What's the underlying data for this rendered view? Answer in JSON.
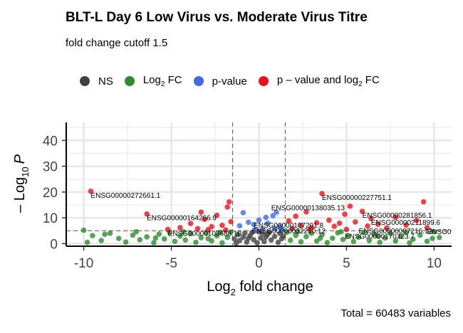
{
  "chart_data": {
    "type": "scatter",
    "title": "BLT-L Day 6 Low Virus vs. Moderate Virus Titre",
    "subtitle": "fold change cutoff 1.5",
    "caption": "Total = 60483 variables",
    "xlabel_main": "Log",
    "xlabel_sub": "2",
    "xlabel_rest": " fold change",
    "ylabel_main": "– Log",
    "ylabel_sub": "10",
    "ylabel_italic": "P",
    "xlim": [
      -11,
      11
    ],
    "ylim": [
      -1,
      47
    ],
    "xticks": [
      -10,
      -5,
      0,
      5,
      10
    ],
    "xtick_labels": [
      "-10",
      "-5",
      "0",
      "5",
      "10"
    ],
    "yticks": [
      0,
      10,
      20,
      30,
      40
    ],
    "ytick_labels": [
      "0",
      "10",
      "20",
      "30",
      "40"
    ],
    "fc_cutoff_lines": [
      -1.5,
      1.5
    ],
    "p_cutoff_line": 5,
    "grid": true,
    "legend_position": "top",
    "legend": [
      {
        "name": "NS",
        "color": "#404040"
      },
      {
        "name_main": "Log",
        "name_sub": "2",
        "name_rest": " FC",
        "color": "#2e8b2e"
      },
      {
        "name": "p-value",
        "color": "#4169e1"
      },
      {
        "name_main": "p – value and log",
        "name_sub": "2",
        "name_rest": " FC",
        "color": "#e8121d"
      }
    ],
    "colors": {
      "ns": "#404040",
      "fc": "#2e8b2e",
      "p": "#4169e1",
      "both": "#e8121d"
    },
    "labeled_points": [
      {
        "gene": "ENSG00000272661.1",
        "x": -9.6,
        "y": 20.3
      },
      {
        "gene": "ENSG00000164266.9",
        "x": -6.4,
        "y": 11.5
      },
      {
        "gene": "ENSG00000108688.10",
        "x": -5.2,
        "y": 5.5
      },
      {
        "gene": "ENSG00000138035.13",
        "x": 0.7,
        "y": 15.4
      },
      {
        "gene": "ENSG00000107201.8",
        "x": -0.3,
        "y": 8.7
      },
      {
        "gene": "ENSG00000032210.12",
        "x": -0.4,
        "y": 6.5
      },
      {
        "gene": "ENSG00000227751.1",
        "x": 3.6,
        "y": 19.4
      },
      {
        "gene": "ENSG00000281856.1",
        "x": 5.9,
        "y": 12.5
      },
      {
        "gene": "ENSG00000211899.6",
        "x": 6.4,
        "y": 9.7
      },
      {
        "gene": "ENSG00000007216.13",
        "x": 5.7,
        "y": 6.4
      },
      {
        "gene": "ENSG00000170323.7",
        "x": 4.9,
        "y": 4.4
      },
      {
        "gene": "ENSG0",
        "x": 9.6,
        "y": 6.2
      }
    ],
    "points": {
      "ns": [
        [
          -1.3,
          0.2
        ],
        [
          -1.1,
          1.2
        ],
        [
          -0.9,
          2.5
        ],
        [
          -0.7,
          0.6
        ],
        [
          -0.5,
          3.1
        ],
        [
          -0.3,
          1.5
        ],
        [
          -0.1,
          0.3
        ],
        [
          0.1,
          2.2
        ],
        [
          0.3,
          0.8
        ],
        [
          0.5,
          3.6
        ],
        [
          0.7,
          1.4
        ],
        [
          0.9,
          2.8
        ],
        [
          1.1,
          0.5
        ],
        [
          1.3,
          1.9
        ],
        [
          -1.2,
          3.5
        ],
        [
          -0.8,
          4.1
        ],
        [
          -0.4,
          4.3
        ],
        [
          0.2,
          4.0
        ],
        [
          0.6,
          4.4
        ],
        [
          1.2,
          3.9
        ],
        [
          -1.4,
          1.8
        ],
        [
          1.4,
          2.9
        ],
        [
          0.0,
          4.6
        ],
        [
          -0.6,
          2.1
        ],
        [
          0.4,
          2.6
        ]
      ],
      "p": [
        [
          -0.9,
          12.0
        ],
        [
          -0.6,
          8.3
        ],
        [
          -0.3,
          7.4
        ],
        [
          0.2,
          5.6
        ],
        [
          0.5,
          7.9
        ],
        [
          0.8,
          10.8
        ],
        [
          1.0,
          12.2
        ],
        [
          1.2,
          6.6
        ],
        [
          -1.1,
          6.9
        ],
        [
          0.0,
          9.1
        ],
        [
          0.4,
          10.2
        ],
        [
          -0.2,
          5.3
        ],
        [
          1.3,
          5.4
        ],
        [
          0.9,
          5.9
        ]
      ],
      "fc": [
        [
          -10.0,
          5.2
        ],
        [
          -9.5,
          3.1
        ],
        [
          -9.0,
          1.2
        ],
        [
          -8.5,
          4.0
        ],
        [
          -8.0,
          2.0
        ],
        [
          -7.6,
          0.6
        ],
        [
          -7.2,
          3.3
        ],
        [
          -6.8,
          1.5
        ],
        [
          -6.4,
          2.6
        ],
        [
          -6.0,
          0.4
        ],
        [
          -5.7,
          3.7
        ],
        [
          -5.4,
          1.8
        ],
        [
          -5.1,
          4.3
        ],
        [
          -4.8,
          0.9
        ],
        [
          -4.5,
          2.9
        ],
        [
          -4.2,
          1.4
        ],
        [
          -3.9,
          3.8
        ],
        [
          -3.6,
          0.5
        ],
        [
          -3.3,
          2.3
        ],
        [
          -3.0,
          4.1
        ],
        [
          -2.7,
          1.1
        ],
        [
          -2.4,
          3.0
        ],
        [
          -2.1,
          0.3
        ],
        [
          -1.8,
          2.4
        ],
        [
          -1.6,
          4.5
        ],
        [
          1.6,
          4.4
        ],
        [
          1.8,
          1.3
        ],
        [
          2.1,
          3.2
        ],
        [
          2.4,
          0.7
        ],
        [
          2.7,
          2.7
        ],
        [
          3.0,
          4.0
        ],
        [
          3.3,
          1.0
        ],
        [
          3.6,
          3.4
        ],
        [
          3.9,
          0.4
        ],
        [
          4.2,
          2.1
        ],
        [
          4.5,
          4.2
        ],
        [
          4.8,
          1.6
        ],
        [
          5.1,
          3.0
        ],
        [
          5.4,
          0.8
        ],
        [
          5.7,
          2.5
        ],
        [
          6.0,
          4.3
        ],
        [
          6.3,
          1.2
        ],
        [
          6.6,
          3.6
        ],
        [
          6.9,
          0.5
        ],
        [
          7.2,
          2.2
        ],
        [
          7.5,
          3.9
        ],
        [
          7.8,
          1.0
        ],
        [
          8.1,
          2.8
        ],
        [
          8.4,
          4.4
        ],
        [
          8.8,
          1.7
        ],
        [
          9.2,
          3.3
        ],
        [
          9.6,
          0.9
        ],
        [
          10.0,
          4.6
        ],
        [
          10.3,
          2.4
        ],
        [
          -9.8,
          0.5
        ],
        [
          -8.8,
          3.6
        ],
        [
          -7.0,
          4.6
        ],
        [
          -5.9,
          2.2
        ],
        [
          -4.3,
          4.6
        ],
        [
          -2.9,
          1.9
        ],
        [
          -2.2,
          4.4
        ],
        [
          2.2,
          4.6
        ],
        [
          3.5,
          2.1
        ],
        [
          4.7,
          4.6
        ],
        [
          6.8,
          2.9
        ],
        [
          8.6,
          0.3
        ],
        [
          9.9,
          2.0
        ]
      ],
      "both": [
        [
          -9.6,
          20.3
        ],
        [
          -6.4,
          11.5
        ],
        [
          -5.2,
          5.5
        ],
        [
          -4.5,
          6.2
        ],
        [
          -3.9,
          7.8
        ],
        [
          -3.5,
          5.8
        ],
        [
          -3.1,
          9.4
        ],
        [
          -2.7,
          6.6
        ],
        [
          -2.4,
          11.0
        ],
        [
          -2.1,
          7.1
        ],
        [
          -1.8,
          14.2
        ],
        [
          -1.6,
          8.5
        ],
        [
          -2.9,
          5.4
        ],
        [
          -1.9,
          5.3
        ],
        [
          -1.7,
          16.2
        ],
        [
          1.7,
          8.8
        ],
        [
          1.9,
          5.9
        ],
        [
          2.1,
          10.6
        ],
        [
          2.4,
          7.0
        ],
        [
          2.7,
          12.3
        ],
        [
          3.0,
          6.2
        ],
        [
          3.3,
          8.1
        ],
        [
          3.6,
          19.4
        ],
        [
          4.0,
          9.1
        ],
        [
          4.3,
          6.7
        ],
        [
          4.6,
          7.9
        ],
        [
          4.9,
          11.4
        ],
        [
          5.2,
          14.5
        ],
        [
          5.5,
          8.4
        ],
        [
          5.9,
          12.5
        ],
        [
          6.2,
          6.8
        ],
        [
          6.4,
          9.7
        ],
        [
          6.8,
          7.5
        ],
        [
          7.3,
          6.1
        ],
        [
          7.8,
          10.2
        ],
        [
          8.4,
          7.2
        ],
        [
          9.0,
          9.0
        ],
        [
          9.4,
          16.2
        ],
        [
          9.6,
          6.2
        ],
        [
          2.9,
          5.3
        ],
        [
          5.0,
          5.5
        ],
        [
          -3.3,
          12.2
        ]
      ]
    }
  }
}
